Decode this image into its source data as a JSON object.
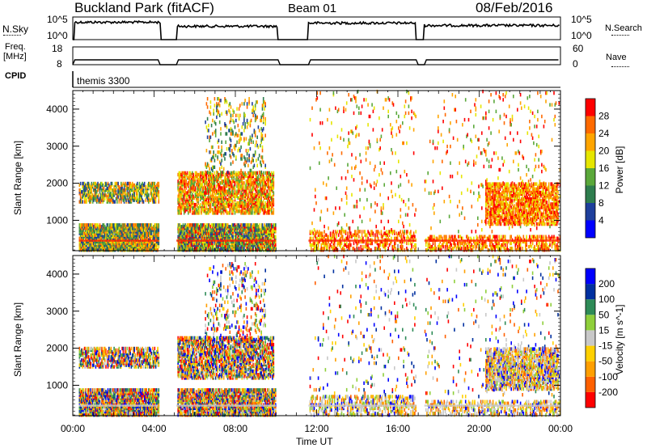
{
  "header": {
    "title_left": "Buckland Park (fitACF)",
    "title_mid": "Beam 01",
    "title_right": "08/Feb/2016"
  },
  "top_panels": {
    "nsky_label": "N.Sky",
    "freq_label_1": "Freq.",
    "freq_label_2": "[MHz]",
    "cpid_label": "CPID",
    "nsearch_label": "N.Search",
    "nave_label": "Nave",
    "tick_105": "10^5",
    "tick_100": "10^0",
    "tick_18": "18",
    "tick_8": "8",
    "tick_60": "60",
    "tick_0": "0",
    "cpid_value": "themis 3300"
  },
  "colors": {
    "power_scale": [
      "#0000ff",
      "#1e3f9c",
      "#2e7d4e",
      "#5aa83a",
      "#e6e600",
      "#ffa500",
      "#ff6a00",
      "#ff0000"
    ],
    "velocity_scale": [
      "#ff0000",
      "#ff6000",
      "#ff9f00",
      "#ffd000",
      "#c8c8c8",
      "#8fcf3b",
      "#2e8b57",
      "#0030a0",
      "#0000ff"
    ]
  },
  "chart_data": [
    {
      "type": "heatmap",
      "name": "power",
      "xlabel": "Time UT",
      "ylabel": "Slant Range [km]",
      "x_ticks": [
        "00:00",
        "04:00",
        "08:00",
        "12:00",
        "16:00",
        "20:00",
        "00:00"
      ],
      "y_ticks": [
        "1000",
        "2000",
        "3000",
        "4000"
      ],
      "ylim": [
        180,
        4500
      ],
      "xlim_hours": [
        0,
        24
      ],
      "colorbar_label": "Power [dB]",
      "colorbar_ticks": [
        "4",
        "8",
        "12",
        "16",
        "20",
        "24",
        "28"
      ],
      "gaps_hours": [
        [
          4.3,
          5.1
        ],
        [
          10.1,
          11.6
        ],
        [
          16.9,
          17.3
        ]
      ],
      "regions": [
        {
          "t": [
            0.3,
            4.2
          ],
          "r": [
            200,
            900
          ],
          "dens": 0.85,
          "pal": "green"
        },
        {
          "t": [
            0.3,
            4.2
          ],
          "r": [
            1500,
            2000
          ],
          "dens": 0.55,
          "pal": "green"
        },
        {
          "t": [
            5.1,
            10.0
          ],
          "r": [
            200,
            900
          ],
          "dens": 0.8,
          "pal": "mixed"
        },
        {
          "t": [
            5.1,
            9.9
          ],
          "r": [
            1200,
            2300
          ],
          "dens": 0.6,
          "pal": "orange"
        },
        {
          "t": [
            6.5,
            9.5
          ],
          "r": [
            2300,
            4300
          ],
          "dens": 0.12,
          "pal": "green"
        },
        {
          "t": [
            11.6,
            16.9
          ],
          "r": [
            200,
            700
          ],
          "dens": 0.35,
          "pal": "red"
        },
        {
          "t": [
            11.6,
            24.0
          ],
          "r": [
            700,
            4500
          ],
          "dens": 0.025,
          "pal": "orange"
        },
        {
          "t": [
            17.3,
            24.0
          ],
          "r": [
            200,
            600
          ],
          "dens": 0.35,
          "pal": "red"
        },
        {
          "t": [
            20.3,
            23.9
          ],
          "r": [
            900,
            2000
          ],
          "dens": 0.6,
          "pal": "red"
        }
      ]
    },
    {
      "type": "heatmap",
      "name": "velocity",
      "xlabel": "Time UT",
      "ylabel": "Slant Range [km]",
      "x_ticks": [
        "00:00",
        "04:00",
        "08:00",
        "12:00",
        "16:00",
        "20:00",
        "00:00"
      ],
      "y_ticks": [
        "1000",
        "2000",
        "3000",
        "4000"
      ],
      "ylim": [
        180,
        4500
      ],
      "xlim_hours": [
        0,
        24
      ],
      "colorbar_label": "Velocity [m s^-1]",
      "colorbar_ticks": [
        "200",
        "100",
        "50",
        "15",
        "-15",
        "-50",
        "-100",
        "-200"
      ],
      "gaps_hours": [
        [
          4.3,
          5.1
        ],
        [
          10.1,
          11.6
        ],
        [
          16.9,
          17.3
        ]
      ],
      "regions": [
        {
          "t": [
            0.3,
            4.2
          ],
          "r": [
            200,
            900
          ],
          "dens": 0.85,
          "pal": "vel"
        },
        {
          "t": [
            0.3,
            4.2
          ],
          "r": [
            1500,
            2000
          ],
          "dens": 0.55,
          "pal": "vel"
        },
        {
          "t": [
            5.1,
            10.0
          ],
          "r": [
            200,
            900
          ],
          "dens": 0.8,
          "pal": "vel"
        },
        {
          "t": [
            5.1,
            9.9
          ],
          "r": [
            1200,
            2300
          ],
          "dens": 0.6,
          "pal": "vel"
        },
        {
          "t": [
            6.5,
            9.5
          ],
          "r": [
            2300,
            4300
          ],
          "dens": 0.12,
          "pal": "vel"
        },
        {
          "t": [
            11.6,
            16.9
          ],
          "r": [
            200,
            700
          ],
          "dens": 0.35,
          "pal": "velgray"
        },
        {
          "t": [
            11.6,
            24.0
          ],
          "r": [
            700,
            4500
          ],
          "dens": 0.025,
          "pal": "vel"
        },
        {
          "t": [
            17.3,
            24.0
          ],
          "r": [
            200,
            600
          ],
          "dens": 0.35,
          "pal": "velgray"
        },
        {
          "t": [
            20.3,
            23.9
          ],
          "r": [
            900,
            2000
          ],
          "dens": 0.6,
          "pal": "velgray"
        }
      ]
    }
  ]
}
